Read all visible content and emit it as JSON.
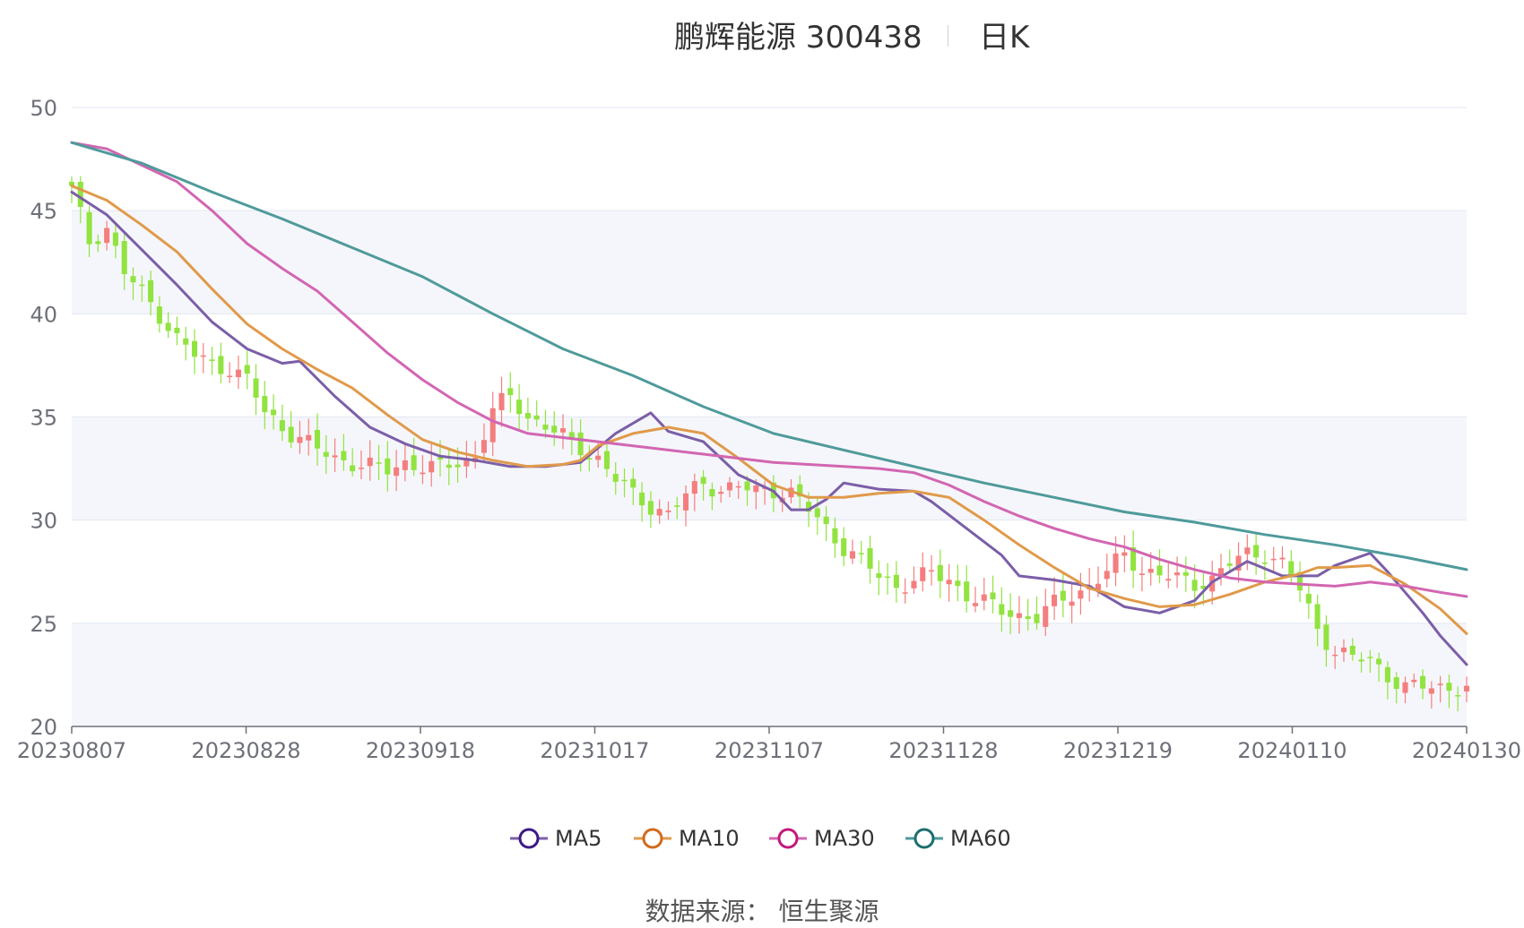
{
  "header": {
    "title": "鹏辉能源 300438",
    "subtitle": "日K"
  },
  "source": {
    "label": "数据来源：",
    "value": "恒生聚源"
  },
  "colors": {
    "up": "#f47e7e",
    "down": "#91e33f",
    "MA5": "#7b5ea7",
    "MA10": "#e09a4a",
    "MA30": "#d266b2",
    "MA60": "#4f9a9b",
    "band": "#f5f6fb",
    "grid": "#e0e6f1",
    "axis": "#6e7079"
  },
  "legend": [
    {
      "name": "MA5",
      "marker": "#3b1a86"
    },
    {
      "name": "MA10",
      "marker": "#d2691e"
    },
    {
      "name": "MA30",
      "marker": "#c2187a"
    },
    {
      "name": "MA60",
      "marker": "#1d6e6e"
    }
  ],
  "chart_data": {
    "type": "candlestick",
    "ylim": [
      20,
      50
    ],
    "yticks": [
      "20",
      "25",
      "30",
      "35",
      "40",
      "45",
      "50"
    ],
    "xticks": [
      "20230807",
      "20230828",
      "20230918",
      "20231017",
      "20231107",
      "20231128",
      "20231219",
      "20240110",
      "20240130"
    ],
    "close_anchors": [
      [
        0,
        46.0
      ],
      [
        2,
        43.5
      ],
      [
        4,
        44.2
      ],
      [
        6,
        42.0
      ],
      [
        8,
        41.0
      ],
      [
        10,
        40.0
      ],
      [
        12,
        38.8
      ],
      [
        14,
        38.0
      ],
      [
        16,
        37.5
      ],
      [
        18,
        37.4
      ],
      [
        20,
        36.8
      ],
      [
        22,
        35.2
      ],
      [
        24,
        34.5
      ],
      [
        26,
        34.0
      ],
      [
        28,
        33.4
      ],
      [
        30,
        33.0
      ],
      [
        32,
        32.8
      ],
      [
        34,
        32.6
      ],
      [
        36,
        32.4
      ],
      [
        38,
        32.8
      ],
      [
        40,
        32.6
      ],
      [
        42,
        32.5
      ],
      [
        44,
        32.8
      ],
      [
        46,
        33.1
      ],
      [
        48,
        35.3
      ],
      [
        50,
        36.0
      ],
      [
        52,
        35.0
      ],
      [
        54,
        34.6
      ],
      [
        56,
        34.0
      ],
      [
        58,
        33.5
      ],
      [
        60,
        33.0
      ],
      [
        62,
        32.0
      ],
      [
        64,
        31.2
      ],
      [
        66,
        30.7
      ],
      [
        68,
        30.3
      ],
      [
        70,
        31.2
      ],
      [
        72,
        31.8
      ],
      [
        74,
        31.5
      ],
      [
        76,
        31.6
      ],
      [
        78,
        31.4
      ],
      [
        80,
        31.5
      ],
      [
        82,
        31.3
      ],
      [
        84,
        30.5
      ],
      [
        86,
        29.6
      ],
      [
        88,
        28.7
      ],
      [
        90,
        28.0
      ],
      [
        92,
        27.3
      ],
      [
        94,
        26.8
      ],
      [
        96,
        27.1
      ],
      [
        98,
        27.4
      ],
      [
        100,
        27.1
      ],
      [
        102,
        26.4
      ],
      [
        104,
        26.0
      ],
      [
        106,
        25.6
      ],
      [
        108,
        25.4
      ],
      [
        110,
        25.3
      ],
      [
        112,
        25.9
      ],
      [
        114,
        26.4
      ],
      [
        116,
        26.8
      ],
      [
        118,
        27.5
      ],
      [
        120,
        28.3
      ],
      [
        122,
        27.6
      ],
      [
        124,
        27.4
      ],
      [
        126,
        27.1
      ],
      [
        128,
        26.9
      ],
      [
        130,
        27.2
      ],
      [
        132,
        27.9
      ],
      [
        134,
        28.3
      ],
      [
        136,
        28.4
      ],
      [
        138,
        27.9
      ],
      [
        140,
        26.6
      ],
      [
        142,
        24.7
      ],
      [
        144,
        23.7
      ],
      [
        146,
        23.3
      ],
      [
        148,
        23.2
      ],
      [
        150,
        22.5
      ],
      [
        152,
        21.9
      ]
    ],
    "ma_anchors": {
      "MA5": [
        [
          0,
          45.9
        ],
        [
          4,
          44.8
        ],
        [
          8,
          43.1
        ],
        [
          12,
          41.4
        ],
        [
          16,
          39.6
        ],
        [
          20,
          38.3
        ],
        [
          24,
          37.6
        ],
        [
          26,
          37.7
        ],
        [
          30,
          36.0
        ],
        [
          34,
          34.5
        ],
        [
          38,
          33.7
        ],
        [
          42,
          33.1
        ],
        [
          46,
          32.9
        ],
        [
          50,
          32.6
        ],
        [
          54,
          32.6
        ],
        [
          58,
          32.8
        ],
        [
          62,
          34.2
        ],
        [
          66,
          35.2
        ],
        [
          68,
          34.3
        ],
        [
          72,
          33.8
        ],
        [
          76,
          32.2
        ],
        [
          80,
          31.4
        ],
        [
          82,
          30.5
        ],
        [
          84,
          30.5
        ],
        [
          86,
          31.0
        ],
        [
          88,
          31.8
        ],
        [
          92,
          31.5
        ],
        [
          96,
          31.4
        ],
        [
          98,
          30.9
        ],
        [
          102,
          29.6
        ],
        [
          106,
          28.3
        ],
        [
          108,
          27.3
        ],
        [
          112,
          27.1
        ],
        [
          116,
          26.8
        ],
        [
          120,
          25.8
        ],
        [
          124,
          25.5
        ],
        [
          128,
          26.1
        ],
        [
          130,
          27.0
        ],
        [
          134,
          28.0
        ],
        [
          138,
          27.3
        ],
        [
          142,
          27.3
        ],
        [
          144,
          27.8
        ],
        [
          148,
          28.4
        ],
        [
          150,
          27.5
        ],
        [
          154,
          25.5
        ],
        [
          156,
          24.4
        ],
        [
          159,
          23.0
        ]
      ],
      "MA10": [
        [
          0,
          46.2
        ],
        [
          4,
          45.5
        ],
        [
          8,
          44.3
        ],
        [
          12,
          43.0
        ],
        [
          16,
          41.2
        ],
        [
          20,
          39.5
        ],
        [
          24,
          38.3
        ],
        [
          28,
          37.3
        ],
        [
          32,
          36.4
        ],
        [
          36,
          35.1
        ],
        [
          40,
          33.9
        ],
        [
          44,
          33.3
        ],
        [
          48,
          32.9
        ],
        [
          52,
          32.6
        ],
        [
          56,
          32.7
        ],
        [
          58,
          32.9
        ],
        [
          60,
          33.6
        ],
        [
          64,
          34.2
        ],
        [
          68,
          34.5
        ],
        [
          72,
          34.2
        ],
        [
          76,
          33.0
        ],
        [
          80,
          31.7
        ],
        [
          84,
          31.1
        ],
        [
          88,
          31.1
        ],
        [
          92,
          31.3
        ],
        [
          96,
          31.4
        ],
        [
          100,
          31.1
        ],
        [
          104,
          30.0
        ],
        [
          108,
          28.8
        ],
        [
          112,
          27.7
        ],
        [
          116,
          26.7
        ],
        [
          120,
          26.2
        ],
        [
          124,
          25.8
        ],
        [
          128,
          25.9
        ],
        [
          132,
          26.4
        ],
        [
          136,
          27.0
        ],
        [
          140,
          27.4
        ],
        [
          142,
          27.7
        ],
        [
          144,
          27.7
        ],
        [
          148,
          27.8
        ],
        [
          152,
          26.9
        ],
        [
          156,
          25.7
        ],
        [
          159,
          24.5
        ]
      ],
      "MA30": [
        [
          0,
          48.3
        ],
        [
          4,
          48.0
        ],
        [
          8,
          47.2
        ],
        [
          12,
          46.4
        ],
        [
          16,
          45.0
        ],
        [
          20,
          43.4
        ],
        [
          24,
          42.2
        ],
        [
          28,
          41.1
        ],
        [
          32,
          39.6
        ],
        [
          36,
          38.1
        ],
        [
          40,
          36.8
        ],
        [
          44,
          35.7
        ],
        [
          48,
          34.8
        ],
        [
          52,
          34.2
        ],
        [
          56,
          34.0
        ],
        [
          60,
          33.8
        ],
        [
          64,
          33.6
        ],
        [
          68,
          33.4
        ],
        [
          72,
          33.2
        ],
        [
          76,
          33.0
        ],
        [
          80,
          32.8
        ],
        [
          84,
          32.7
        ],
        [
          88,
          32.6
        ],
        [
          92,
          32.5
        ],
        [
          96,
          32.3
        ],
        [
          100,
          31.7
        ],
        [
          104,
          30.9
        ],
        [
          108,
          30.2
        ],
        [
          112,
          29.6
        ],
        [
          116,
          29.1
        ],
        [
          120,
          28.7
        ],
        [
          124,
          28.1
        ],
        [
          128,
          27.6
        ],
        [
          132,
          27.2
        ],
        [
          136,
          27.0
        ],
        [
          140,
          26.9
        ],
        [
          144,
          26.8
        ],
        [
          148,
          27.0
        ],
        [
          152,
          26.8
        ],
        [
          156,
          26.5
        ],
        [
          159,
          26.3
        ]
      ],
      "MA60": [
        [
          0,
          48.3
        ],
        [
          8,
          47.3
        ],
        [
          16,
          45.9
        ],
        [
          24,
          44.6
        ],
        [
          32,
          43.2
        ],
        [
          40,
          41.8
        ],
        [
          48,
          40.0
        ],
        [
          56,
          38.3
        ],
        [
          64,
          37.0
        ],
        [
          72,
          35.5
        ],
        [
          80,
          34.2
        ],
        [
          88,
          33.4
        ],
        [
          96,
          32.6
        ],
        [
          104,
          31.8
        ],
        [
          112,
          31.1
        ],
        [
          120,
          30.4
        ],
        [
          128,
          29.9
        ],
        [
          136,
          29.3
        ],
        [
          144,
          28.8
        ],
        [
          152,
          28.2
        ],
        [
          159,
          27.6
        ]
      ]
    }
  }
}
